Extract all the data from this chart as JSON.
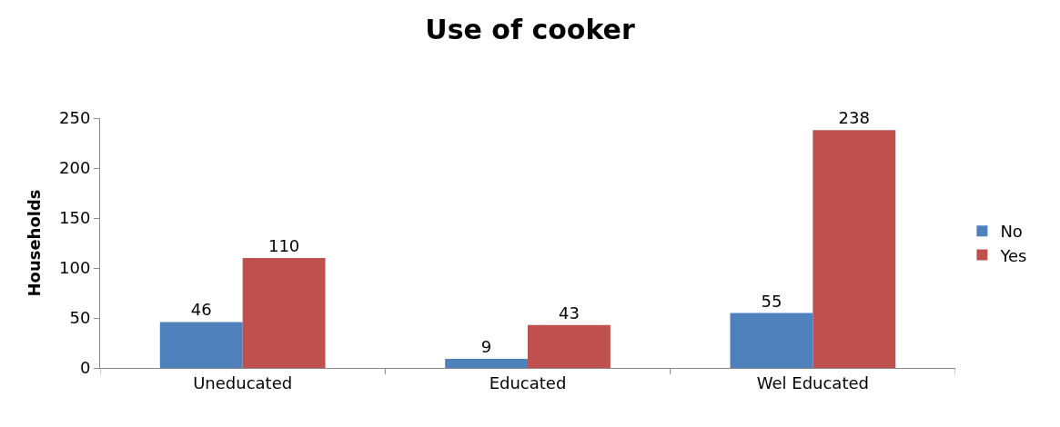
{
  "chart_data": {
    "type": "bar",
    "title": "Use of cooker",
    "ylabel": "Households",
    "categories": [
      "Uneducated",
      "Educated",
      "Wel Educated"
    ],
    "series": [
      {
        "name": "No",
        "color": "#4f81bd",
        "values": [
          46,
          9,
          55
        ]
      },
      {
        "name": "Yes",
        "color": "#c0504d",
        "values": [
          110,
          43,
          238
        ]
      }
    ],
    "ylim": [
      0,
      250
    ],
    "yticks": [
      0,
      50,
      100,
      150,
      200,
      250
    ],
    "grid": false,
    "legend": "right",
    "data_labels": true
  }
}
